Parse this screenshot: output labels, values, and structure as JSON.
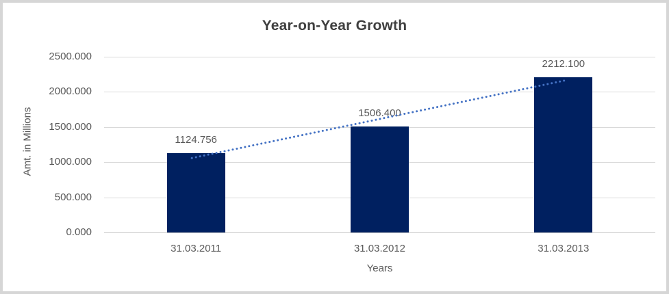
{
  "chart_data": {
    "type": "bar",
    "title": "Year-on-Year Growth",
    "xlabel": "Years",
    "ylabel": "Amt. in Millions",
    "categories": [
      "31.03.2011",
      "31.03.2012",
      "31.03.2013"
    ],
    "values": [
      1124.756,
      1506.4,
      2212.1
    ],
    "value_labels": [
      "1124.756",
      "1506.400",
      "2212.100"
    ],
    "yticks": [
      0,
      500,
      1000,
      1500,
      2000,
      2500
    ],
    "ytick_labels": [
      "0.000",
      "500.000",
      "1000.000",
      "1500.000",
      "2000.000",
      "2500.000"
    ],
    "ylim": [
      0,
      2500
    ],
    "grid": true,
    "legend": false,
    "trendline": {
      "type": "linear",
      "style": "dotted",
      "color": "#4472C4"
    },
    "colors": {
      "bar": "#002060",
      "gridline": "#D9D9D9",
      "axis_line": "#C6C6C6",
      "title_text": "#3F3F3F",
      "tick_text": "#595959"
    }
  }
}
